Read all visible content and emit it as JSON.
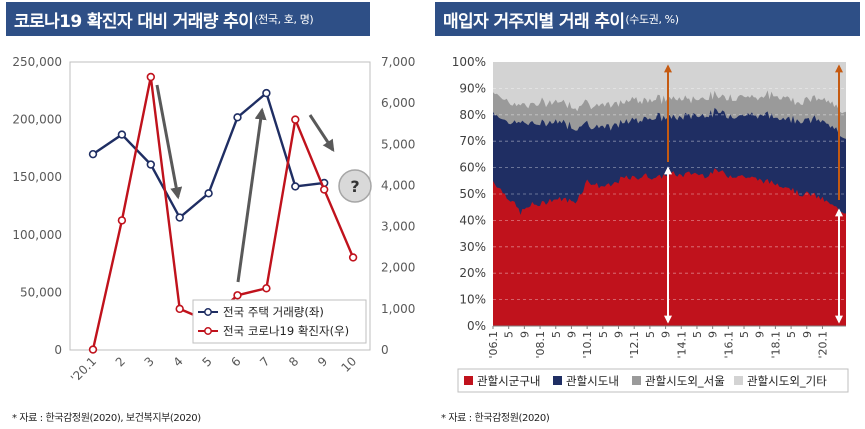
{
  "left": {
    "title": "코로나19 확진자 대비 거래량 추이",
    "subtitle": "(전국, 호, 명)",
    "source": "* 자료 : 한국감정원(2020), 보건복지부(2020)",
    "annotation": "?"
  },
  "right": {
    "title": "매입자 거주지별 거래 추이",
    "subtitle": "(수도권, %)",
    "source": "* 자료 : 한국감정원(2020)"
  },
  "colors": {
    "navy": "#1f2e63",
    "red": "#c0121c",
    "gray_dark": "#9a9a9a",
    "gray_light": "#d3d3d3",
    "arrow_gray": "#595959",
    "arrow_orange": "#c55a11"
  },
  "chart_data": [
    {
      "type": "line",
      "x_tick_labels": [
        "'20.1",
        "2",
        "3",
        "4",
        "5",
        "6",
        "7",
        "8",
        "9",
        "10"
      ],
      "y_left_ticks": [
        "0",
        "50,000",
        "100,000",
        "150,000",
        "200,000",
        "250,000"
      ],
      "y_right_ticks": [
        "0",
        "1,000",
        "2,000",
        "3,000",
        "4,000",
        "5,000",
        "6,000",
        "7,000"
      ],
      "ylim_left": [
        0,
        250000
      ],
      "ylim_right": [
        0,
        7000
      ],
      "series": [
        {
          "name": "전국 주택 거래량(좌)",
          "axis": "left",
          "values": [
            170000,
            187000,
            161000,
            115000,
            136000,
            202000,
            223000,
            142000,
            145000,
            null
          ]
        },
        {
          "name": "전국 코로나19 확진자(우)",
          "axis": "right",
          "values": [
            11,
            3150,
            6636,
            1000,
            700,
            1330,
            1500,
            5600,
            3900,
            2250
          ]
        }
      ],
      "legend_position": "bottom-right"
    },
    {
      "type": "area",
      "stacked": true,
      "x_tick_labels": [
        "'06.1",
        "5",
        "9",
        "'08.1",
        "5",
        "9",
        "'10.1",
        "5",
        "9",
        "'12.1",
        "5",
        "9",
        "'14.1",
        "5",
        "9",
        "'16.1",
        "5",
        "9",
        "'18.1",
        "5",
        "9",
        "'20.1"
      ],
      "y_ticks": [
        "0%",
        "10%",
        "20%",
        "30%",
        "40%",
        "50%",
        "60%",
        "70%",
        "80%",
        "90%",
        "100%"
      ],
      "ylim": [
        0,
        100
      ],
      "legend": [
        "관할시군구내",
        "관할시도내",
        "관할시도외_서울",
        "관할시도외_기타"
      ],
      "legend_position": "bottom",
      "x_months": [
        0,
        6,
        10,
        14,
        20,
        24,
        30,
        36,
        42,
        46,
        48,
        54,
        60,
        66,
        72,
        78,
        84,
        90,
        96,
        102,
        108,
        114,
        120,
        126,
        132,
        138,
        144,
        150,
        156,
        162,
        168,
        174,
        180
      ],
      "series": [
        {
          "name": "관할시군구내",
          "values": [
            55,
            50,
            47,
            43,
            46,
            46,
            48,
            48,
            47,
            52,
            55,
            53,
            53,
            56,
            56,
            57,
            56,
            58,
            57,
            58,
            57,
            59,
            57,
            57,
            56,
            55,
            54,
            53,
            50,
            50,
            48,
            45,
            43
          ]
        },
        {
          "name": "관할시도내",
          "values": [
            26,
            28,
            30,
            34,
            31,
            30,
            30,
            29,
            28,
            25,
            22,
            22,
            22,
            21,
            22,
            22,
            23,
            21,
            22,
            22,
            23,
            22,
            23,
            23,
            24,
            25,
            25,
            26,
            28,
            28,
            30,
            29,
            29
          ]
        },
        {
          "name": "관할시도외_서울",
          "values": [
            8,
            8,
            7,
            7,
            7,
            8,
            7,
            8,
            8,
            8,
            8,
            8,
            8,
            8,
            8,
            7,
            7,
            7,
            7,
            6,
            7,
            6,
            7,
            7,
            7,
            7,
            8,
            8,
            7,
            8,
            8,
            9,
            10
          ]
        },
        {
          "name": "관할시도외_기타",
          "values": [
            11,
            14,
            16,
            16,
            16,
            16,
            15,
            15,
            17,
            15,
            15,
            17,
            17,
            15,
            14,
            14,
            14,
            14,
            14,
            14,
            13,
            13,
            13,
            13,
            13,
            13,
            13,
            13,
            15,
            14,
            14,
            17,
            18
          ]
        }
      ]
    }
  ]
}
